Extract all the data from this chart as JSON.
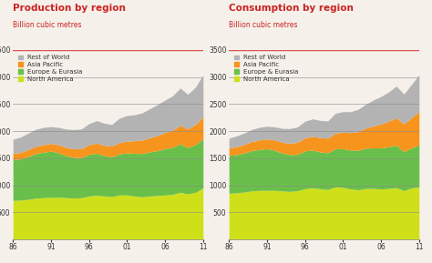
{
  "title1": "Production by region",
  "title2": "Consumption by region",
  "subtitle": "Billion cubic metres",
  "legend_labels": [
    "Rest of World",
    "Asia Pacific",
    "Europe & Eurasia",
    "North America"
  ],
  "colors": [
    "#b3b3b3",
    "#f7941d",
    "#6abf4b",
    "#cfe01b"
  ],
  "years": [
    1986,
    1987,
    1988,
    1989,
    1990,
    1991,
    1992,
    1993,
    1994,
    1995,
    1996,
    1997,
    1998,
    1999,
    2000,
    2001,
    2002,
    2003,
    2004,
    2005,
    2006,
    2007,
    2008,
    2009,
    2010,
    2011
  ],
  "xtick_labels": [
    "86",
    "91",
    "96",
    "01",
    "06",
    "11"
  ],
  "xtick_positions": [
    1986,
    1991,
    1996,
    2001,
    2006,
    2011
  ],
  "ylim": [
    0,
    3500
  ],
  "yticks": [
    500,
    1000,
    1500,
    2000,
    2500,
    3000,
    3500
  ],
  "title_color": "#cc2222",
  "subtitle_color": "#cc2222",
  "prod_north_america": [
    720,
    725,
    740,
    760,
    770,
    775,
    780,
    770,
    760,
    770,
    800,
    815,
    800,
    790,
    820,
    820,
    800,
    785,
    800,
    810,
    820,
    830,
    870,
    840,
    870,
    950
  ],
  "prod_europe_eurasia": [
    750,
    760,
    790,
    825,
    840,
    855,
    820,
    775,
    755,
    740,
    770,
    775,
    745,
    735,
    760,
    775,
    790,
    800,
    815,
    830,
    855,
    870,
    895,
    855,
    880,
    910
  ],
  "prod_asia_pacific": [
    115,
    120,
    128,
    133,
    138,
    143,
    148,
    153,
    158,
    165,
    178,
    188,
    193,
    198,
    208,
    220,
    232,
    248,
    263,
    280,
    298,
    318,
    340,
    345,
    372,
    408
  ],
  "prod_rest_world": [
    265,
    285,
    305,
    315,
    320,
    310,
    320,
    340,
    355,
    365,
    390,
    415,
    408,
    400,
    450,
    475,
    480,
    505,
    535,
    570,
    600,
    635,
    690,
    640,
    690,
    770
  ],
  "cons_north_america": [
    850,
    860,
    875,
    895,
    905,
    905,
    905,
    895,
    885,
    900,
    935,
    950,
    935,
    920,
    970,
    960,
    930,
    915,
    940,
    940,
    930,
    940,
    955,
    900,
    950,
    970
  ],
  "cons_europe_eurasia": [
    700,
    705,
    720,
    745,
    755,
    770,
    740,
    700,
    680,
    670,
    700,
    700,
    680,
    680,
    705,
    715,
    720,
    730,
    745,
    750,
    760,
    770,
    785,
    720,
    740,
    775
  ],
  "cons_asia_pacific": [
    140,
    148,
    158,
    168,
    175,
    180,
    192,
    198,
    210,
    222,
    240,
    252,
    264,
    270,
    287,
    305,
    322,
    345,
    372,
    406,
    440,
    473,
    507,
    513,
    558,
    615
  ],
  "cons_rest_world": [
    180,
    198,
    210,
    222,
    235,
    235,
    242,
    258,
    272,
    284,
    308,
    324,
    318,
    318,
    368,
    380,
    386,
    415,
    440,
    480,
    510,
    540,
    585,
    552,
    612,
    682
  ],
  "title_fontsize": 7.5,
  "subtitle_fontsize": 5.5,
  "tick_fontsize": 5.5,
  "background_color": "#f5f0ea",
  "plot_bg": "#f5f0ea",
  "top_line_color": "#e05050",
  "grid_color": "#888888"
}
